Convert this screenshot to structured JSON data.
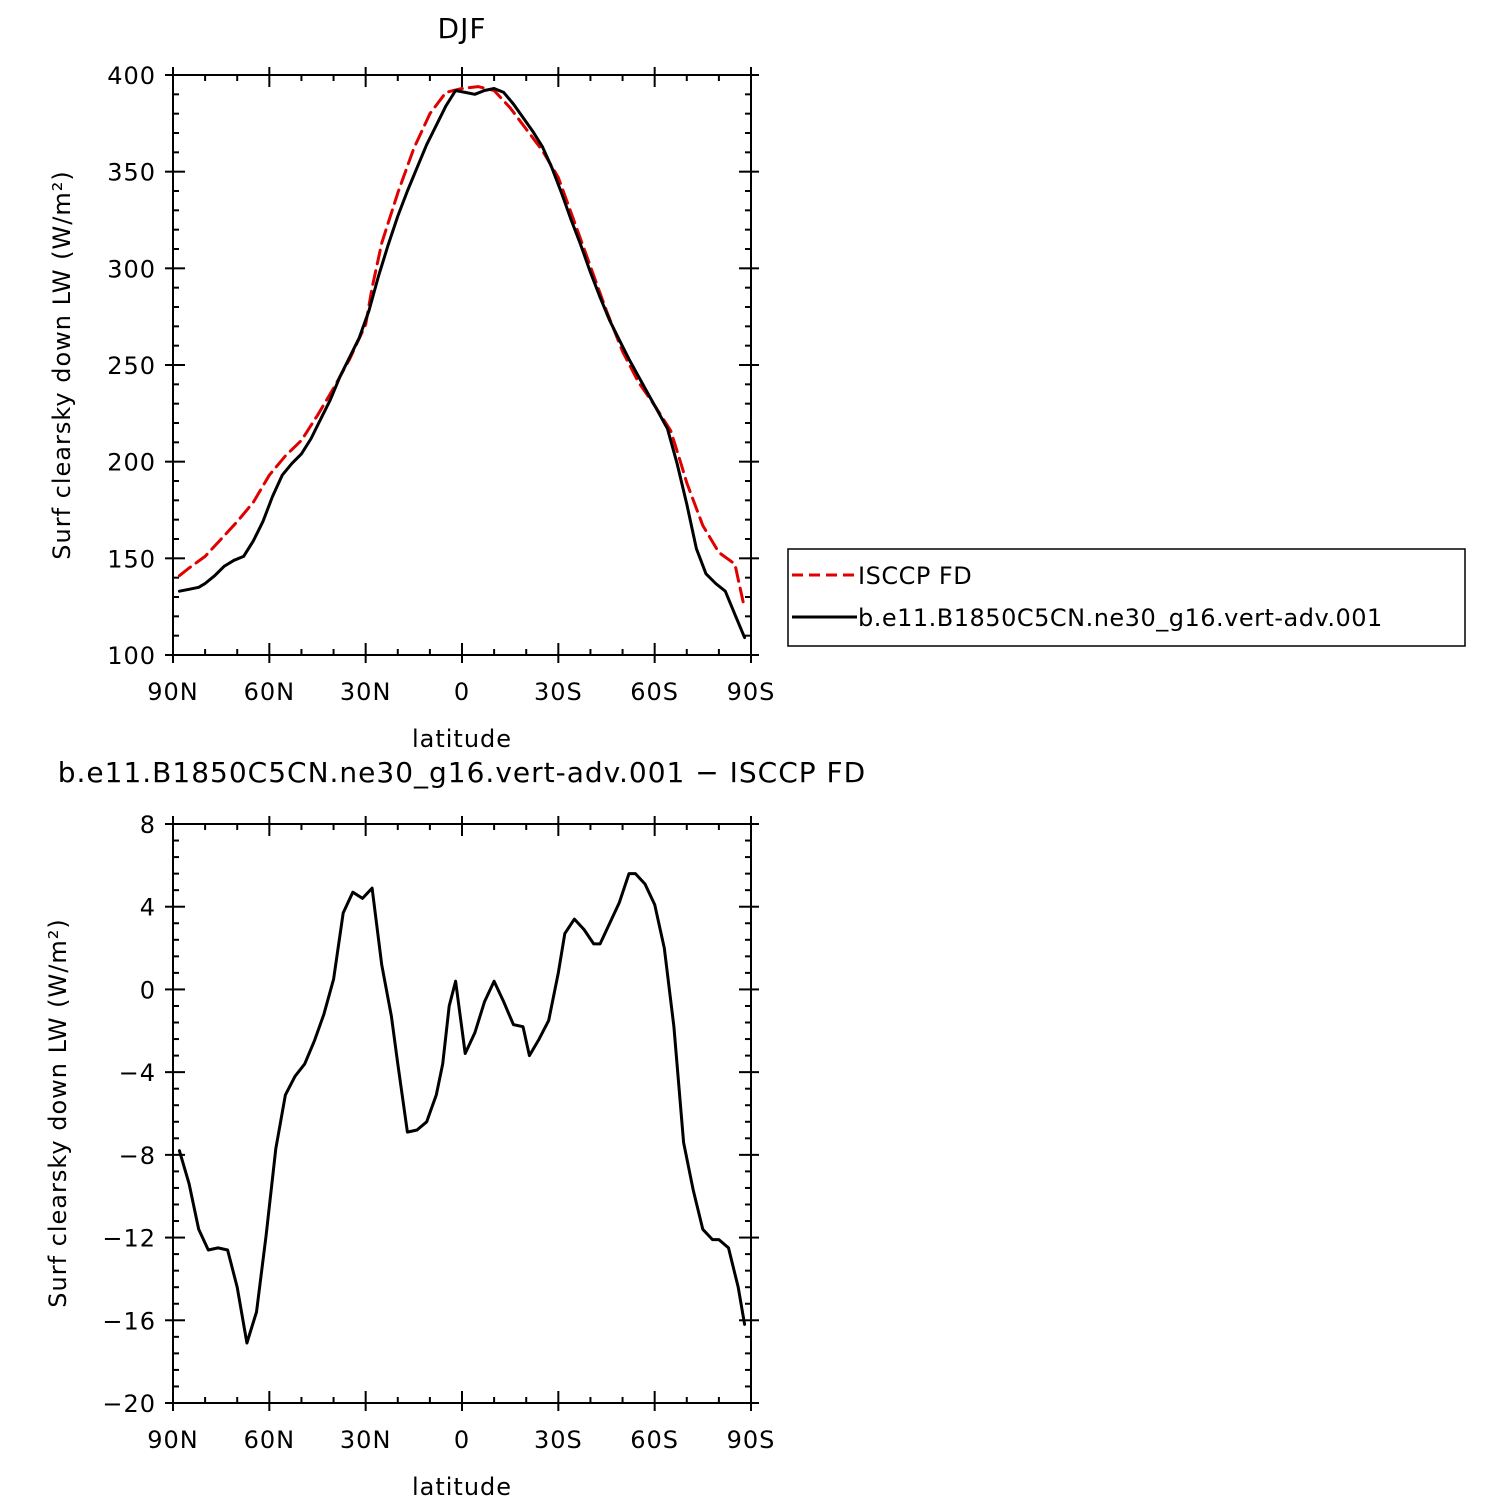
{
  "chart_data": [
    {
      "type": "line",
      "title": "DJF",
      "xlabel": "latitude",
      "ylabel": "Surf clearsky down LW (W/m²)",
      "xlim": [
        -90,
        90
      ],
      "ylim": [
        100,
        400
      ],
      "xticks": [
        -90,
        -60,
        -30,
        0,
        30,
        60,
        90
      ],
      "xtick_labels": [
        "90N",
        "60N",
        "30N",
        "0",
        "30S",
        "60S",
        "90S"
      ],
      "yticks": [
        100,
        150,
        200,
        250,
        300,
        350,
        400
      ],
      "ytick_labels": [
        "100",
        "150",
        "200",
        "250",
        "300",
        "350",
        "400"
      ],
      "legend": "right",
      "series": [
        {
          "name": "ISCCP FD",
          "color": "#e00000",
          "dash": "dashed",
          "x": [
            -88,
            -85,
            -80,
            -75,
            -70,
            -65,
            -60,
            -55,
            -50,
            -45,
            -40,
            -35,
            -30,
            -28,
            -25,
            -20,
            -15,
            -10,
            -5,
            0,
            5,
            10,
            15,
            20,
            25,
            30,
            35,
            40,
            45,
            50,
            55,
            60,
            65,
            68,
            70,
            75,
            80,
            85,
            88
          ],
          "y": [
            141,
            145,
            151,
            160,
            169,
            179,
            193,
            203,
            211,
            224,
            238,
            253,
            271,
            290,
            313,
            339,
            362,
            380,
            391,
            393,
            394,
            392,
            383,
            372,
            361,
            347,
            324,
            301,
            278,
            257,
            241,
            229,
            216,
            200,
            189,
            167,
            153,
            147,
            124
          ]
        },
        {
          "name": "b.e11.B1850C5CN.ne30_g16.vert-adv.001",
          "color": "#000000",
          "dash": "solid",
          "x": [
            -88,
            -85,
            -82,
            -80,
            -77,
            -74,
            -71,
            -68,
            -65,
            -62,
            -59,
            -56,
            -53,
            -50,
            -47,
            -44,
            -41,
            -38,
            -35,
            -32,
            -29,
            -26,
            -23,
            -20,
            -17,
            -14,
            -11,
            -8,
            -5,
            -2,
            1,
            4,
            7,
            10,
            13,
            16,
            19,
            22,
            25,
            28,
            31,
            34,
            37,
            40,
            43,
            46,
            49,
            52,
            55,
            58,
            61,
            64,
            67,
            70,
            73,
            76,
            79,
            82,
            85,
            88
          ],
          "y": [
            133,
            134,
            135,
            137,
            141,
            146,
            149,
            151,
            159,
            169,
            182,
            193,
            199,
            204,
            212,
            222,
            232,
            244,
            254,
            264,
            278,
            296,
            312,
            327,
            340,
            352,
            364,
            374,
            384,
            392,
            391,
            390,
            392,
            393,
            391,
            385,
            378,
            371,
            363,
            352,
            339,
            325,
            312,
            298,
            285,
            273,
            263,
            253,
            244,
            235,
            226,
            217,
            199,
            178,
            155,
            142,
            137,
            133,
            121,
            109
          ]
        }
      ]
    },
    {
      "type": "line",
      "title": "b.e11.B1850C5CN.ne30_g16.vert-adv.001 − ISCCP FD",
      "xlabel": "latitude",
      "ylabel": "Surf clearsky down LW (W/m²)",
      "xlim": [
        -90,
        90
      ],
      "ylim": [
        -20,
        8
      ],
      "xticks": [
        -90,
        -60,
        -30,
        0,
        30,
        60,
        90
      ],
      "xtick_labels": [
        "90N",
        "60N",
        "30N",
        "0",
        "30S",
        "60S",
        "90S"
      ],
      "yticks": [
        -20,
        -16,
        -12,
        -8,
        -4,
        0,
        4,
        8
      ],
      "ytick_labels": [
        "−20",
        "−16",
        "−12",
        "−8",
        "−4",
        "0",
        "4",
        "8"
      ],
      "series": [
        {
          "color": "#000000",
          "dash": "solid",
          "x": [
            -88,
            -85,
            -82,
            -79,
            -76,
            -73,
            -70,
            -67,
            -64,
            -61,
            -58,
            -55,
            -52,
            -49,
            -46,
            -43,
            -40,
            -37,
            -34,
            -31,
            -28,
            -25,
            -22,
            -20,
            -17,
            -14,
            -11,
            -8,
            -6,
            -4,
            -2,
            1,
            4,
            7,
            10,
            13,
            16,
            19,
            21,
            24,
            27,
            30,
            32,
            35,
            38,
            41,
            43,
            46,
            49,
            52,
            54,
            57,
            60,
            63,
            66,
            69,
            72,
            75,
            78,
            80,
            83,
            86,
            88
          ],
          "y": [
            -7.8,
            -9.4,
            -11.6,
            -12.6,
            -12.5,
            -12.6,
            -14.4,
            -17.1,
            -15.6,
            -11.9,
            -7.7,
            -5.1,
            -4.2,
            -3.6,
            -2.5,
            -1.2,
            0.5,
            3.7,
            4.7,
            4.4,
            4.9,
            1.2,
            -1.3,
            -3.6,
            -6.9,
            -6.8,
            -6.4,
            -5.1,
            -3.6,
            -0.8,
            0.4,
            -3.1,
            -2.1,
            -0.6,
            0.4,
            -0.6,
            -1.7,
            -1.8,
            -3.2,
            -2.4,
            -1.5,
            0.8,
            2.7,
            3.4,
            2.9,
            2.2,
            2.2,
            3.2,
            4.2,
            5.6,
            5.6,
            5.1,
            4.1,
            2.0,
            -1.8,
            -7.4,
            -9.7,
            -11.6,
            -12.1,
            -12.1,
            -12.5,
            -14.4,
            -16.2
          ]
        }
      ]
    }
  ]
}
